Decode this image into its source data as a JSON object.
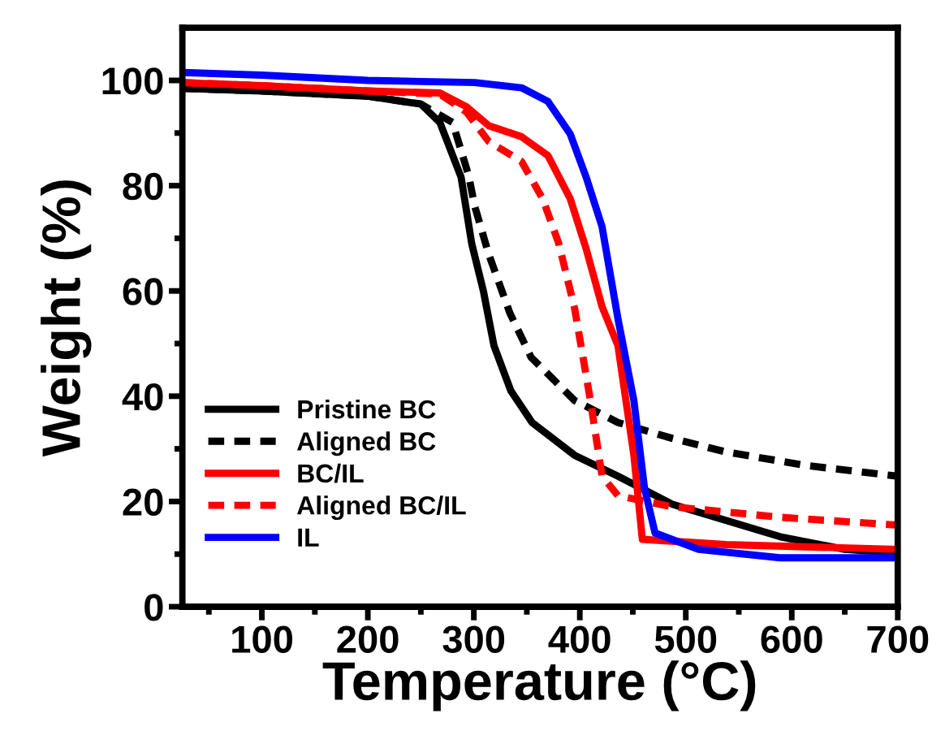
{
  "chart_data": {
    "type": "line",
    "xlabel": "Temperature (°C)",
    "ylabel": "Weight (%)",
    "xlim": [
      25,
      700
    ],
    "xticks": [
      100,
      200,
      300,
      400,
      500,
      600,
      700
    ],
    "ylim": [
      0,
      110
    ],
    "yticks": [
      0,
      20,
      40,
      60,
      80,
      100
    ],
    "grid": false,
    "legend": "bottom left",
    "marker": "none",
    "series": [
      {
        "name": "Pristine BC",
        "color": "#000000",
        "line_style": "solid",
        "x": [
          25,
          100,
          200,
          250,
          268,
          288,
          298,
          309,
          319,
          335,
          355,
          395,
          436,
          487,
          538,
          589,
          650,
          700
        ],
        "values": [
          98.5,
          98,
          97,
          95.5,
          92,
          81.6,
          69,
          60,
          49.6,
          41,
          35,
          28.8,
          24.8,
          19.5,
          16.4,
          13.3,
          10.9,
          10.2
        ]
      },
      {
        "name": "Aligned BC",
        "color": "#000000",
        "line_style": "dashed",
        "x": [
          25,
          100,
          200,
          250,
          280,
          295,
          301,
          314,
          334,
          354,
          395,
          436,
          487,
          538,
          615,
          700
        ],
        "values": [
          98.5,
          98,
          97,
          95.5,
          92,
          82,
          76,
          67,
          55.8,
          47.4,
          39.2,
          35,
          32,
          29.4,
          26.8,
          24.8
        ]
      },
      {
        "name": "BC/IL",
        "color": "#ff0000",
        "line_style": "solid",
        "x": [
          25,
          100,
          200,
          268,
          293,
          314,
          345,
          370,
          391,
          406,
          421,
          436,
          451,
          459,
          538,
          700
        ],
        "values": [
          99.6,
          99,
          98,
          97.6,
          95,
          91.4,
          89.3,
          85.7,
          77.5,
          68,
          57,
          49.6,
          28.8,
          12.8,
          11.8,
          10.9
        ]
      },
      {
        "name": "Aligned BC/IL",
        "color": "#ff0000",
        "line_style": "dashed",
        "x": [
          25,
          100,
          200,
          268,
          293,
          314,
          345,
          365,
          380,
          395,
          410,
          421,
          436,
          487,
          589,
          700
        ],
        "values": [
          99.6,
          99,
          98,
          97.4,
          94,
          88.4,
          84.6,
          77.5,
          69.1,
          56.8,
          39.2,
          24.8,
          21.1,
          19,
          17,
          15.5
        ]
      },
      {
        "name": "IL",
        "color": "#0000ff",
        "line_style": "solid",
        "x": [
          25,
          100,
          200,
          301,
          345,
          370,
          391,
          406,
          421,
          436,
          451,
          461,
          471,
          512,
          589,
          700
        ],
        "values": [
          101.5,
          101,
          100,
          99.6,
          98.6,
          96,
          89.8,
          81.6,
          72.2,
          54.7,
          39.2,
          22.6,
          14,
          10.9,
          9.3,
          9.3
        ]
      }
    ]
  }
}
